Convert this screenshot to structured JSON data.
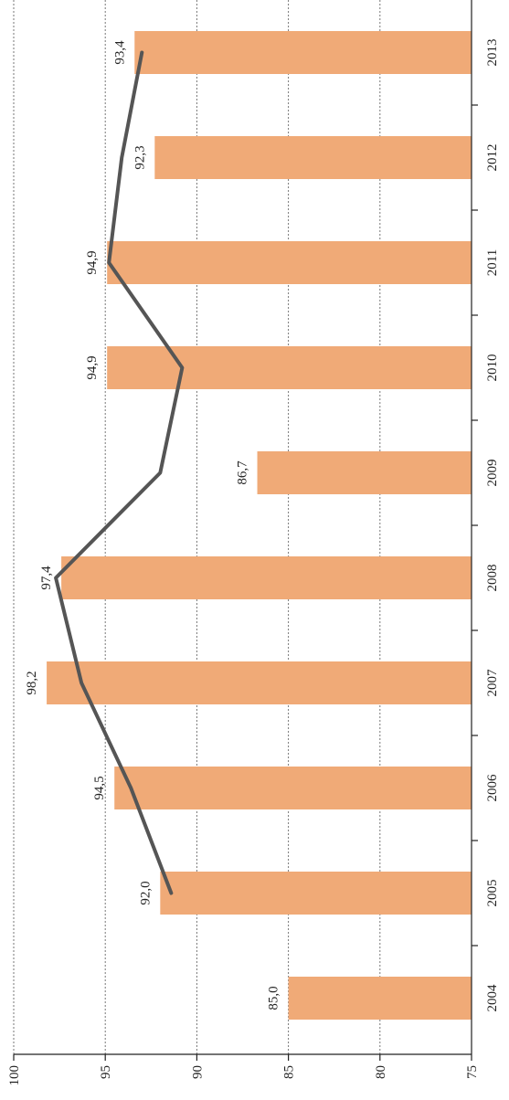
{
  "chart_data": {
    "type": "bar",
    "orientation": "rotated-90",
    "categories": [
      "2004",
      "2005",
      "2006",
      "2007",
      "2008",
      "2009",
      "2010",
      "2011",
      "2012",
      "2013"
    ],
    "values": [
      85.0,
      92.0,
      94.5,
      98.2,
      97.4,
      86.7,
      94.9,
      94.9,
      92.3,
      93.4
    ],
    "value_labels": [
      "85,0",
      "92,0",
      "94,5",
      "98,2",
      "97,4",
      "86,7",
      "94,9",
      "94,9",
      "92,3",
      "93,4"
    ],
    "line_series": {
      "categories": [
        "2005",
        "2006",
        "2007",
        "2008",
        "2009",
        "2010",
        "2011",
        "2012",
        "2013"
      ],
      "values": [
        91.4,
        93.6,
        96.3,
        97.7,
        92.0,
        90.8,
        94.8,
        94.1,
        93.0
      ]
    },
    "ylim": [
      75,
      100
    ],
    "yticks": [
      75,
      80,
      85,
      90,
      95,
      100
    ],
    "grid": true,
    "colors": {
      "bar": "#f0aa77",
      "line": "#555555",
      "grid": "#777777",
      "axis": "#222222"
    }
  }
}
